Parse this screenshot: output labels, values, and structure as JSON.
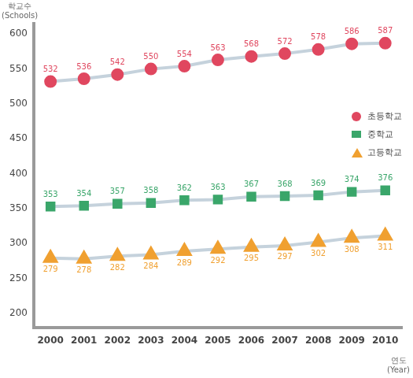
{
  "chart_data": {
    "type": "line",
    "y_label": [
      "학교수",
      "(Schools)"
    ],
    "x_label": [
      "연도",
      "(Year)"
    ],
    "categories": [
      "2000",
      "2001",
      "2002",
      "2003",
      "2004",
      "2005",
      "2006",
      "2007",
      "2008",
      "2009",
      "2010"
    ],
    "series": [
      {
        "name": "초등학교",
        "color": "#e0475f",
        "marker": "circle",
        "values": [
          532,
          536,
          542,
          550,
          554,
          563,
          568,
          572,
          578,
          586,
          587
        ]
      },
      {
        "name": "중학교",
        "color": "#3aa66a",
        "marker": "rect",
        "values": [
          353,
          354,
          357,
          358,
          362,
          363,
          367,
          368,
          369,
          374,
          376
        ]
      },
      {
        "name": "고등학교",
        "color": "#f0a030",
        "marker": "triangle",
        "values": [
          279,
          278,
          282,
          284,
          289,
          292,
          295,
          297,
          302,
          308,
          311
        ]
      }
    ],
    "ylim": [
      180,
      615
    ],
    "yticks": [
      200,
      250,
      300,
      350,
      400,
      450,
      500,
      550,
      600
    ],
    "grid": false,
    "legend": "right",
    "data_labels": true
  }
}
